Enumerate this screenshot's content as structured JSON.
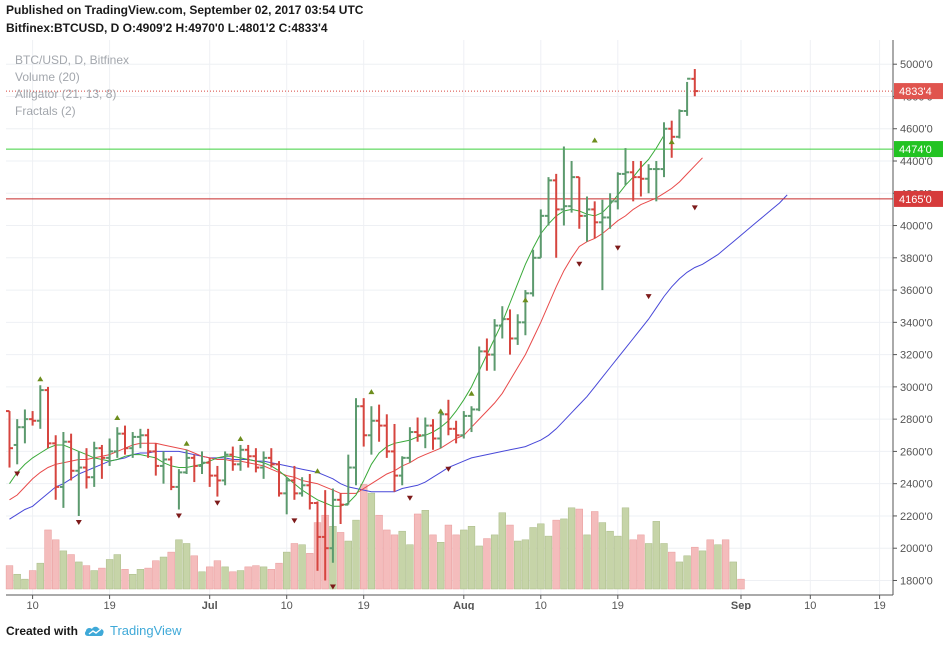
{
  "header": {
    "published": "Published on TradingView.com, September 02, 2017 03:54 UTC",
    "ohlc_line": "Bitfinex:BTCUSD, D  O:4909'2 H:4970'0 L:4801'2 C:4833'4"
  },
  "footer": {
    "created_with": "Created with",
    "brand": "TradingView"
  },
  "chart_data": {
    "type": "bar",
    "legend": [
      "BTC/USD, D, Bitfinex",
      "Volume (20)",
      "Alligator (21, 13, 8)",
      "Fractals (2)"
    ],
    "price_ticks": [
      "5000'0",
      "4800'0",
      "4600'0",
      "4400'0",
      "4200'0",
      "4000'0",
      "3800'0",
      "3600'0",
      "3400'0",
      "3200'0",
      "3000'0",
      "2800'0",
      "2600'0",
      "2400'0",
      "2200'0",
      "2000'0",
      "1800'0"
    ],
    "price_tick_values": [
      5000,
      4800,
      4600,
      4400,
      4200,
      4000,
      3800,
      3600,
      3400,
      3200,
      3000,
      2800,
      2600,
      2400,
      2200,
      2000,
      1800
    ],
    "ylim": [
      1710,
      5150
    ],
    "date_ticks": [
      {
        "label": "10",
        "day": 3
      },
      {
        "label": "19",
        "day": 13
      },
      {
        "label": "Jul",
        "day": 26
      },
      {
        "label": "10",
        "day": 36
      },
      {
        "label": "19",
        "day": 46
      },
      {
        "label": "Aug",
        "day": 59
      },
      {
        "label": "10",
        "day": 69
      },
      {
        "label": "19",
        "day": 79
      },
      {
        "label": "Sep",
        "day": 95
      },
      {
        "label": "10",
        "day": 104
      },
      {
        "label": "19",
        "day": 113
      }
    ],
    "price_labels": [
      {
        "value": 4833.4,
        "label": "4833'4",
        "color": "#e0544e"
      },
      {
        "value": 4474.0,
        "label": "4474'0",
        "color": "#22c322"
      },
      {
        "value": 4165.0,
        "label": "4165'0",
        "color": "#d63b3b"
      }
    ],
    "horizontal_lines": [
      {
        "value": 4474.0,
        "color": "#3fd13f"
      },
      {
        "value": 4165.0,
        "color": "#c62b2b"
      }
    ],
    "series": [
      {
        "name": "BTC/USD",
        "ohlc": [
          [
            2850,
            2850,
            2500,
            2620
          ],
          [
            2640,
            2800,
            2520,
            2750
          ],
          [
            2750,
            2860,
            2650,
            2800
          ],
          [
            2800,
            2850,
            2760,
            2790
          ],
          [
            2790,
            3010,
            2740,
            2980
          ],
          [
            2980,
            3000,
            2620,
            2650
          ],
          [
            2650,
            2700,
            2300,
            2380
          ],
          [
            2380,
            2720,
            2250,
            2660
          ],
          [
            2660,
            2710,
            2420,
            2480
          ],
          [
            2480,
            2600,
            2200,
            2500
          ],
          [
            2500,
            2620,
            2370,
            2440
          ],
          [
            2440,
            2660,
            2380,
            2620
          ],
          [
            2620,
            2640,
            2430,
            2560
          ],
          [
            2560,
            2680,
            2510,
            2600
          ],
          [
            2600,
            2750,
            2560,
            2710
          ],
          [
            2710,
            2760,
            2580,
            2620
          ],
          [
            2620,
            2720,
            2560,
            2690
          ],
          [
            2690,
            2740,
            2620,
            2700
          ],
          [
            2700,
            2740,
            2560,
            2600
          ],
          [
            2600,
            2650,
            2450,
            2510
          ],
          [
            2510,
            2600,
            2400,
            2550
          ],
          [
            2550,
            2570,
            2360,
            2380
          ],
          [
            2380,
            2490,
            2240,
            2470
          ],
          [
            2470,
            2610,
            2460,
            2560
          ],
          [
            2560,
            2580,
            2410,
            2510
          ],
          [
            2510,
            2600,
            2460,
            2530
          ],
          [
            2530,
            2560,
            2380,
            2450
          ],
          [
            2450,
            2510,
            2320,
            2420
          ],
          [
            2420,
            2600,
            2390,
            2580
          ],
          [
            2580,
            2630,
            2480,
            2520
          ],
          [
            2520,
            2640,
            2480,
            2610
          ],
          [
            2610,
            2640,
            2500,
            2570
          ],
          [
            2570,
            2620,
            2470,
            2500
          ],
          [
            2500,
            2600,
            2430,
            2560
          ],
          [
            2560,
            2620,
            2500,
            2520
          ],
          [
            2520,
            2540,
            2320,
            2340
          ],
          [
            2340,
            2440,
            2210,
            2420
          ],
          [
            2420,
            2510,
            2300,
            2340
          ],
          [
            2340,
            2440,
            2320,
            2390
          ],
          [
            2390,
            2460,
            2240,
            2280
          ],
          [
            2280,
            2290,
            1860,
            2070
          ],
          [
            2070,
            2360,
            1800,
            2000
          ],
          [
            2000,
            2370,
            1910,
            2300
          ],
          [
            2300,
            2340,
            2150,
            2270
          ],
          [
            2270,
            2580,
            2270,
            2500
          ],
          [
            2500,
            2930,
            2390,
            2880
          ],
          [
            2880,
            2930,
            2630,
            2700
          ],
          [
            2700,
            2880,
            2580,
            2790
          ],
          [
            2790,
            2890,
            2660,
            2760
          ],
          [
            2760,
            2830,
            2560,
            2600
          ],
          [
            2600,
            2770,
            2350,
            2450
          ],
          [
            2450,
            2570,
            2390,
            2560
          ],
          [
            2560,
            2750,
            2530,
            2720
          ],
          [
            2720,
            2810,
            2660,
            2700
          ],
          [
            2700,
            2810,
            2620,
            2760
          ],
          [
            2760,
            2800,
            2610,
            2680
          ],
          [
            2680,
            2860,
            2620,
            2830
          ],
          [
            2830,
            2920,
            2700,
            2740
          ],
          [
            2740,
            2790,
            2650,
            2700
          ],
          [
            2700,
            2850,
            2680,
            2820
          ],
          [
            2820,
            2880,
            2720,
            2860
          ],
          [
            2860,
            3250,
            2850,
            3220
          ],
          [
            3220,
            3300,
            3100,
            3200
          ],
          [
            3200,
            3420,
            3100,
            3380
          ],
          [
            3380,
            3500,
            3300,
            3420
          ],
          [
            3420,
            3480,
            3200,
            3300
          ],
          [
            3300,
            3450,
            3260,
            3400
          ],
          [
            3400,
            3600,
            3320,
            3580
          ],
          [
            3580,
            3850,
            3560,
            3800
          ],
          [
            3800,
            4100,
            3800,
            4060
          ],
          [
            4060,
            4300,
            4000,
            4280
          ],
          [
            4280,
            4320,
            3800,
            4100
          ],
          [
            4100,
            4490,
            4000,
            4120
          ],
          [
            4120,
            4400,
            4080,
            4300
          ],
          [
            4300,
            4300,
            3980,
            4060
          ],
          [
            4060,
            4180,
            3900,
            4100
          ],
          [
            4100,
            4150,
            3920,
            4020
          ],
          [
            4020,
            4160,
            3600,
            4050
          ],
          [
            4050,
            4200,
            3980,
            4150
          ],
          [
            4150,
            4330,
            4100,
            4320
          ],
          [
            4320,
            4480,
            4250,
            4330
          ],
          [
            4330,
            4400,
            4150,
            4300
          ],
          [
            4300,
            4400,
            4180,
            4290
          ],
          [
            4290,
            4380,
            4200,
            4350
          ],
          [
            4350,
            4400,
            4150,
            4350
          ],
          [
            4350,
            4640,
            4300,
            4600
          ],
          [
            4600,
            4650,
            4420,
            4550
          ],
          [
            4550,
            4720,
            4540,
            4710
          ],
          [
            4710,
            4890,
            4680,
            4910
          ],
          [
            4909.2,
            4970,
            4801.2,
            4833.4
          ]
        ]
      },
      {
        "name": "Volume",
        "values": [
          95,
          60,
          40,
          75,
          105,
          240,
          200,
          155,
          140,
          110,
          95,
          75,
          85,
          120,
          140,
          80,
          60,
          80,
          85,
          115,
          130,
          150,
          200,
          185,
          135,
          70,
          90,
          115,
          90,
          70,
          75,
          90,
          95,
          90,
          80,
          105,
          150,
          185,
          180,
          145,
          270,
          300,
          255,
          230,
          195,
          280,
          425,
          390,
          300,
          240,
          220,
          235,
          180,
          305,
          320,
          220,
          190,
          260,
          220,
          240,
          255,
          175,
          205,
          220,
          310,
          260,
          195,
          200,
          250,
          265,
          215,
          280,
          285,
          330,
          325,
          220,
          315,
          270,
          235,
          215,
          330,
          200,
          220,
          185,
          275,
          185,
          150,
          110,
          135,
          170,
          155,
          200,
          180,
          200,
          110,
          40
        ]
      },
      {
        "name": "Jaw",
        "values": [
          2180,
          2210,
          2240,
          2260,
          2300,
          2340,
          2380,
          2400,
          2430,
          2460,
          2480,
          2500,
          2520,
          2540,
          2550,
          2560,
          2580,
          2590,
          2590,
          2600,
          2600,
          2600,
          2600,
          2590,
          2580,
          2570,
          2560,
          2560,
          2560,
          2550,
          2550,
          2550,
          2540,
          2540,
          2530,
          2520,
          2510,
          2500,
          2490,
          2480,
          2470,
          2450,
          2430,
          2400,
          2380,
          2370,
          2360,
          2350,
          2350,
          2350,
          2350,
          2370,
          2380,
          2390,
          2410,
          2440,
          2470,
          2500,
          2520,
          2540,
          2560,
          2570,
          2580,
          2590,
          2600,
          2610,
          2620,
          2630,
          2650,
          2670,
          2700,
          2740,
          2790,
          2840,
          2890,
          2940,
          3000,
          3060,
          3120,
          3180,
          3240,
          3300,
          3360,
          3420,
          3490,
          3560,
          3620,
          3670,
          3710,
          3740,
          3760,
          3790,
          3820,
          3860,
          3900,
          3940,
          3980,
          4020,
          4060,
          4100,
          4140,
          4190
        ]
      },
      {
        "name": "Teeth",
        "values": [
          2300,
          2330,
          2380,
          2430,
          2470,
          2500,
          2520,
          2530,
          2540,
          2550,
          2550,
          2560,
          2570,
          2580,
          2600,
          2620,
          2640,
          2650,
          2650,
          2650,
          2640,
          2630,
          2620,
          2610,
          2590,
          2570,
          2560,
          2550,
          2550,
          2540,
          2540,
          2530,
          2520,
          2510,
          2490,
          2470,
          2450,
          2440,
          2420,
          2410,
          2400,
          2380,
          2360,
          2340,
          2340,
          2340,
          2370,
          2400,
          2430,
          2460,
          2480,
          2510,
          2530,
          2560,
          2580,
          2600,
          2620,
          2650,
          2680,
          2700,
          2750,
          2800,
          2850,
          2900,
          2960,
          3040,
          3120,
          3200,
          3300,
          3400,
          3510,
          3620,
          3720,
          3800,
          3870,
          3900,
          3920,
          3950,
          3990,
          4030,
          4060,
          4100,
          4130,
          4150,
          4170,
          4200,
          4230,
          4270,
          4320,
          4370,
          4420
        ]
      },
      {
        "name": "Lips",
        "values": [
          2400,
          2470,
          2520,
          2560,
          2590,
          2620,
          2640,
          2640,
          2620,
          2600,
          2580,
          2560,
          2550,
          2540,
          2550,
          2570,
          2580,
          2580,
          2570,
          2560,
          2530,
          2510,
          2500,
          2500,
          2510,
          2520,
          2540,
          2560,
          2570,
          2570,
          2560,
          2550,
          2540,
          2530,
          2510,
          2480,
          2440,
          2400,
          2360,
          2330,
          2300,
          2280,
          2260,
          2260,
          2280,
          2330,
          2420,
          2520,
          2590,
          2630,
          2650,
          2660,
          2670,
          2690,
          2700,
          2720,
          2750,
          2790,
          2850,
          2920,
          3000,
          3100,
          3200,
          3300,
          3400,
          3520,
          3640,
          3760,
          3860,
          3950,
          4010,
          4060,
          4090,
          4100,
          4090,
          4070,
          4060,
          4080,
          4130,
          4190,
          4250,
          4300,
          4360,
          4410,
          4480,
          4560
        ]
      }
    ],
    "fractals_up": [
      {
        "day": 4,
        "value": 3010
      },
      {
        "day": 14,
        "value": 2770
      },
      {
        "day": 23,
        "value": 2610
      },
      {
        "day": 30,
        "value": 2640
      },
      {
        "day": 40,
        "value": 2440
      },
      {
        "day": 47,
        "value": 2930
      },
      {
        "day": 56,
        "value": 2810
      },
      {
        "day": 60,
        "value": 2920
      },
      {
        "day": 67,
        "value": 3500
      },
      {
        "day": 76,
        "value": 4490
      },
      {
        "day": 86,
        "value": 4480
      }
    ],
    "fractals_down": [
      {
        "day": 1,
        "value": 2500
      },
      {
        "day": 9,
        "value": 2200
      },
      {
        "day": 22,
        "value": 2240
      },
      {
        "day": 27,
        "value": 2320
      },
      {
        "day": 37,
        "value": 2210
      },
      {
        "day": 42,
        "value": 1800
      },
      {
        "day": 52,
        "value": 2350
      },
      {
        "day": 57,
        "value": 2530
      },
      {
        "day": 74,
        "value": 3800
      },
      {
        "day": 79,
        "value": 3900
      },
      {
        "day": 83,
        "value": 3600
      },
      {
        "day": 89,
        "value": 4150
      }
    ],
    "colors": {
      "up": "#5c9a6e",
      "down": "#d6453f",
      "vol_up": "#c6d4a8",
      "vol_down": "#f4bcbc",
      "jaw": "#4848d8",
      "teeth": "#e84a4a",
      "lips": "#3aaa3a",
      "fractal_up": "#6d8d1d",
      "fractal_down": "#7d1a1a",
      "grid": "#eef0f4",
      "axis_text": "#555555"
    }
  }
}
